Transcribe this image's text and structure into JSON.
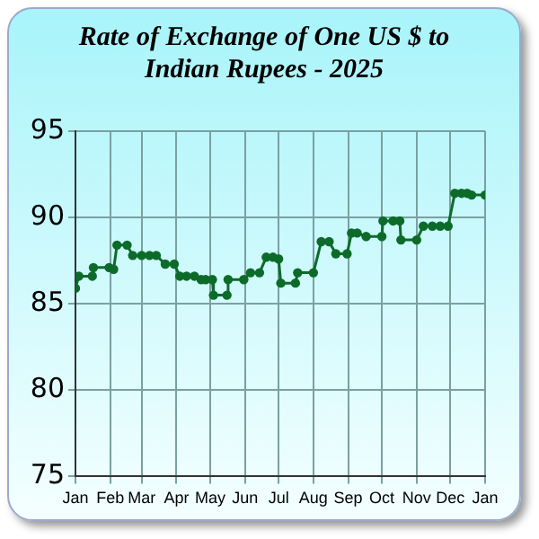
{
  "chart_data": {
    "type": "line",
    "title": "Rate of Exchange of One US $ to Indian Rupees - 2025",
    "x": [
      "2025-01-01",
      "2025-01-04",
      "2025-01-16",
      "2025-01-17",
      "2025-01-31",
      "2025-02-04",
      "2025-02-07",
      "2025-02-16",
      "2025-02-21",
      "2025-03-01",
      "2025-03-08",
      "2025-03-14",
      "2025-03-22",
      "2025-03-30",
      "2025-04-04",
      "2025-04-10",
      "2025-04-17",
      "2025-04-23",
      "2025-04-27",
      "2025-05-03",
      "2025-05-04",
      "2025-05-16",
      "2025-05-17",
      "2025-05-31",
      "2025-06-06",
      "2025-06-14",
      "2025-06-20",
      "2025-06-26",
      "2025-07-01",
      "2025-07-03",
      "2025-07-16",
      "2025-07-18",
      "2025-08-01",
      "2025-08-08",
      "2025-08-15",
      "2025-08-21",
      "2025-08-31",
      "2025-09-04",
      "2025-09-09",
      "2025-09-17",
      "2025-10-01",
      "2025-10-02",
      "2025-10-11",
      "2025-10-17",
      "2025-10-18",
      "2025-11-01",
      "2025-11-07",
      "2025-11-15",
      "2025-11-22",
      "2025-11-29",
      "2025-12-05",
      "2025-12-11",
      "2025-12-16",
      "2025-12-20",
      "2026-01-01"
    ],
    "series": [
      {
        "color": "#0d6b2a",
        "values": [
          85.9,
          86.6,
          86.6,
          87.1,
          87.1,
          87.0,
          88.4,
          88.4,
          87.8,
          87.8,
          87.8,
          87.8,
          87.3,
          87.3,
          86.6,
          86.6,
          86.6,
          86.4,
          86.4,
          86.4,
          85.5,
          85.5,
          86.4,
          86.4,
          86.8,
          86.8,
          87.7,
          87.7,
          87.6,
          86.2,
          86.2,
          86.8,
          86.8,
          88.6,
          88.6,
          87.9,
          87.9,
          89.1,
          89.1,
          88.9,
          88.9,
          89.8,
          89.8,
          89.8,
          88.7,
          88.7,
          89.5,
          89.5,
          89.5,
          89.5,
          91.4,
          91.4,
          91.4,
          91.3,
          91.3
        ]
      }
    ],
    "xlim": [
      "2025-01-01",
      "2026-01-01"
    ],
    "xticks": [
      {
        "value": "2025-01-01",
        "label": "Jan"
      },
      {
        "value": "2025-02-01",
        "label": "Feb"
      },
      {
        "value": "2025-03-01",
        "label": "Mar"
      },
      {
        "value": "2025-04-01",
        "label": "Apr"
      },
      {
        "value": "2025-05-01",
        "label": "May"
      },
      {
        "value": "2025-06-01",
        "label": "Jun"
      },
      {
        "value": "2025-07-01",
        "label": "Jul"
      },
      {
        "value": "2025-08-01",
        "label": "Aug"
      },
      {
        "value": "2025-09-01",
        "label": "Sep"
      },
      {
        "value": "2025-10-01",
        "label": "Oct"
      },
      {
        "value": "2025-11-01",
        "label": "Nov"
      },
      {
        "value": "2025-12-01",
        "label": "Dec"
      },
      {
        "value": "2026-01-01",
        "label": "Jan"
      }
    ],
    "ylim": [
      75,
      95
    ],
    "yticks": [
      75,
      80,
      85,
      90,
      95
    ],
    "grid": true,
    "marker": "circle",
    "line_style": "solid"
  }
}
